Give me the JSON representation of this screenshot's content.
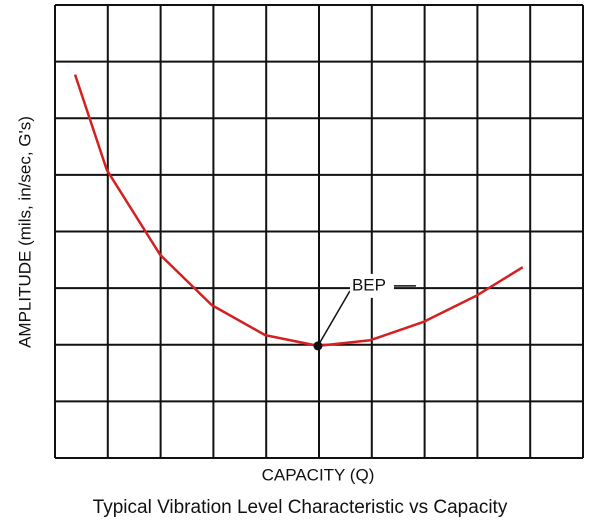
{
  "chart_data": {
    "type": "line",
    "title": "Typical Vibration Level Characteristic vs Capacity",
    "x_label": "CAPACITY (Q)",
    "y_label": "AMPLITUDE (mils, in/sec, G's)",
    "series": [
      {
        "name": null,
        "color": "#d42020",
        "x": [
          0.38,
          0.98,
          1.99,
          2.97,
          3.98,
          4.98,
          5.97,
          6.97,
          7.97,
          8.86
        ],
        "values": [
          6.77,
          5.09,
          3.59,
          2.7,
          2.17,
          1.98,
          2.08,
          2.4,
          2.86,
          3.37
        ]
      }
    ],
    "annotation": {
      "text": "BEP",
      "x": 4.98,
      "y": 1.98
    },
    "xlim": [
      0,
      10
    ],
    "ylim": [
      0,
      8
    ],
    "xticks": [
      0,
      1,
      2,
      3,
      4,
      5,
      6,
      7,
      8,
      9,
      10
    ],
    "yticks": [
      0,
      1,
      2,
      3,
      4,
      5,
      6,
      7,
      8
    ],
    "grid": true
  }
}
